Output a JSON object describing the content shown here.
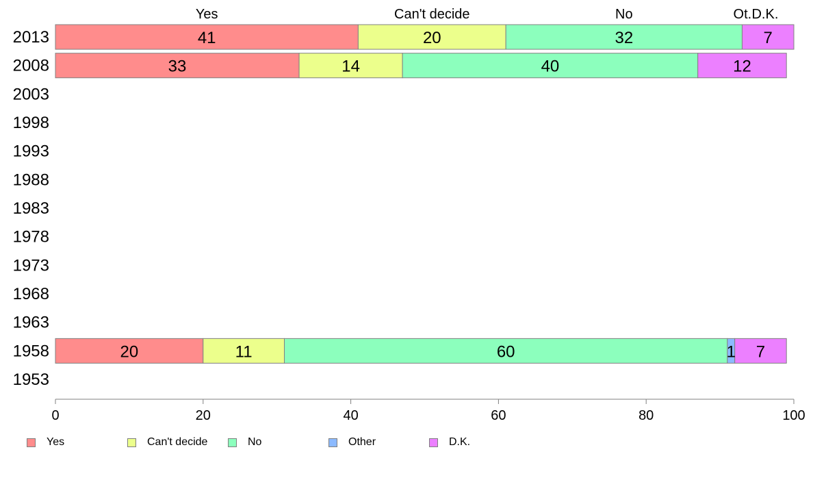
{
  "chart_data": {
    "type": "bar",
    "orientation": "horizontal",
    "stacked": true,
    "categories": [
      "2013",
      "2008",
      "2003",
      "1998",
      "1993",
      "1988",
      "1983",
      "1978",
      "1973",
      "1968",
      "1963",
      "1958",
      "1953"
    ],
    "series": [
      {
        "name": "Yes",
        "color": "#ff8c8c",
        "values": [
          41,
          33,
          null,
          null,
          null,
          null,
          null,
          null,
          null,
          null,
          null,
          20,
          null
        ]
      },
      {
        "name": "Can't decide",
        "color": "#ecff8c",
        "values": [
          20,
          14,
          null,
          null,
          null,
          null,
          null,
          null,
          null,
          null,
          null,
          11,
          null
        ]
      },
      {
        "name": "No",
        "color": "#8cffbd",
        "values": [
          32,
          40,
          null,
          null,
          null,
          null,
          null,
          null,
          null,
          null,
          null,
          60,
          null
        ]
      },
      {
        "name": "Other",
        "color": "#8cbaff",
        "values": [
          0,
          0,
          null,
          null,
          null,
          null,
          null,
          null,
          null,
          null,
          null,
          1,
          null
        ]
      },
      {
        "name": "D.K.",
        "color": "#ec80ff",
        "values": [
          7,
          12,
          null,
          null,
          null,
          null,
          null,
          null,
          null,
          null,
          null,
          7,
          null
        ]
      }
    ],
    "top_labels": [
      "Yes",
      "Can't decide",
      "No",
      "Ot.",
      "D.K."
    ],
    "xlim": [
      0,
      100
    ],
    "xticks": [
      0,
      20,
      40,
      60,
      80,
      100
    ],
    "title": "",
    "xlabel": "",
    "ylabel": "",
    "grid": false,
    "legend_position": "bottom"
  }
}
